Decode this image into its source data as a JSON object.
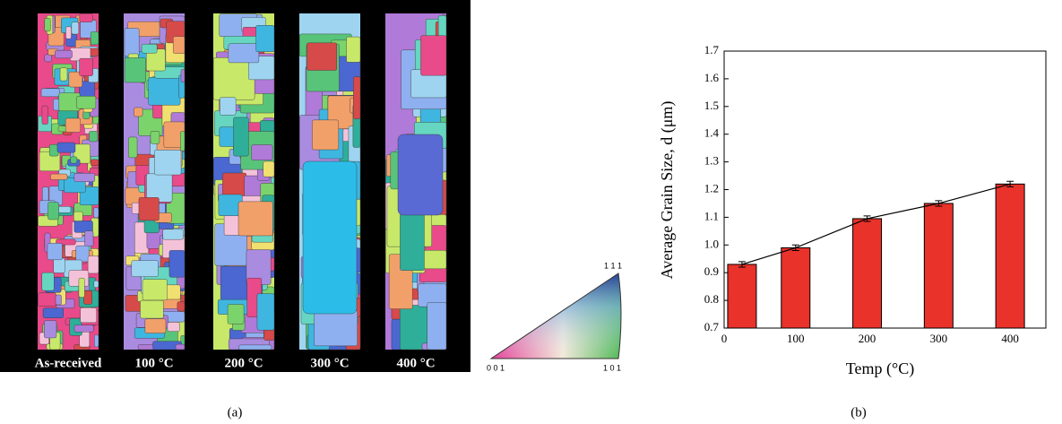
{
  "panel_a": {
    "labels": [
      "As-received",
      "100 °C",
      "200 °C",
      "300 °C",
      "400 °C"
    ],
    "triangle": {
      "top": "1 1 1",
      "left": "0 0 1",
      "right": "1 0 1"
    },
    "caption": "(a)"
  },
  "chart_data": {
    "type": "bar",
    "xlabel": "Temp (°C)",
    "ylabel": "Average Grain Size, d (μm)",
    "x": [
      25,
      100,
      200,
      300,
      400
    ],
    "series": [
      {
        "color": "#e8322a",
        "values": [
          0.93,
          0.99,
          1.095,
          1.15,
          1.22
        ],
        "errors": [
          0.01,
          0.01,
          0.01,
          0.01,
          0.01
        ]
      }
    ],
    "line": true,
    "xlim": [
      0,
      450
    ],
    "xticks": [
      0,
      100,
      200,
      300,
      400
    ],
    "ylim": [
      0.7,
      1.7
    ],
    "yticks": [
      0.7,
      0.8,
      0.9,
      {
        "value": 1,
        "label": "1.0"
      },
      1.1,
      1.2,
      1.3,
      1.4,
      1.5,
      1.6,
      1.7
    ],
    "caption": "(b)"
  }
}
